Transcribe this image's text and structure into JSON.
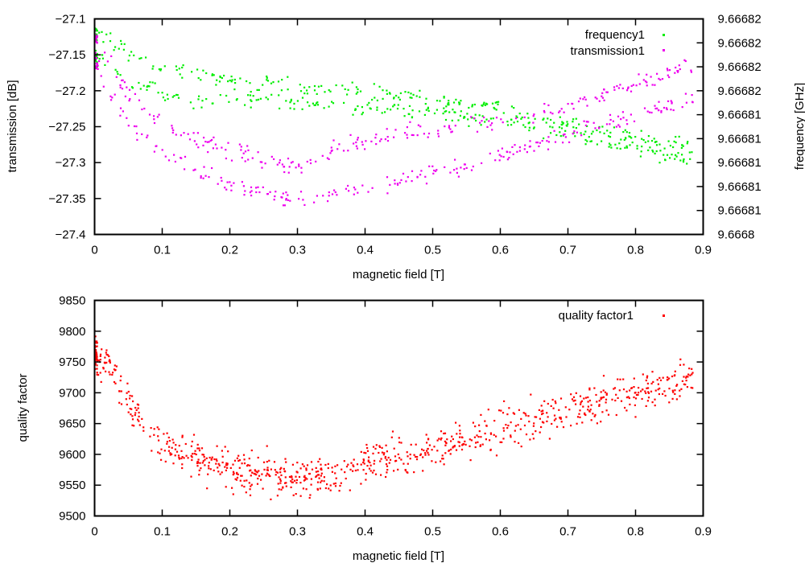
{
  "chart_data": [
    {
      "type": "scatter",
      "title": "",
      "xlabel": "magnetic field [T]",
      "ylabel": "transmission [dB]",
      "y2label": "frequency [GHz]",
      "xlim": [
        0,
        0.9
      ],
      "ylim": [
        -27.4,
        -27.1
      ],
      "y2lim": [
        9.6668,
        9.666823
      ],
      "xticks": [
        "0",
        "0.1",
        "0.2",
        "0.3",
        "0.4",
        "0.5",
        "0.6",
        "0.7",
        "0.8",
        "0.9"
      ],
      "yticks": [
        "-27.1",
        "-27.15",
        "-27.2",
        "-27.25",
        "-27.3",
        "-27.35",
        "-27.4"
      ],
      "y2ticks": [
        "9.66682",
        "9.66682",
        "9.66682",
        "9.66682",
        "9.66681",
        "9.66681",
        "9.66681",
        "9.66681",
        "9.66681",
        "9.6668"
      ],
      "grid": false,
      "legend": "top-right",
      "series": [
        {
          "name": "frequency1",
          "color": "#00ee00",
          "axis": "y2",
          "branches": [
            {
              "x": [
                0,
                0.02,
                0.05,
                0.08,
                0.1,
                0.13,
                0.15,
                0.2,
                0.25,
                0.3,
                0.35,
                0.4,
                0.45,
                0.5,
                0.55,
                0.6,
                0.65,
                0.7,
                0.75,
                0.8,
                0.85,
                0.885
              ],
              "y": [
                9.6668215,
                9.666821,
                9.6668195,
                9.6668185,
                9.6668178,
                9.6668172,
                9.666817,
                9.6668165,
                9.666816,
                9.6668158,
                9.6668155,
                9.6668152,
                9.6668148,
                9.6668145,
                9.666814,
                9.6668135,
                9.6668128,
                9.666812,
                9.6668112,
                9.6668105,
                9.6668097,
                9.6668092
              ]
            },
            {
              "x": [
                0,
                0.02,
                0.05,
                0.08,
                0.1,
                0.13,
                0.15,
                0.2,
                0.25,
                0.3,
                0.35,
                0.4,
                0.45,
                0.5,
                0.55,
                0.6,
                0.65,
                0.7,
                0.75,
                0.8,
                0.85,
                0.885
              ],
              "y": [
                9.666819,
                9.666818,
                9.6668165,
                9.6668155,
                9.666815,
                9.6668145,
                9.666814,
                9.6668145,
                9.6668143,
                9.666814,
                9.6668138,
                9.6668135,
                9.6668133,
                9.666813,
                9.6668125,
                9.666812,
                9.6668115,
                9.6668108,
                9.66681,
                9.6668093,
                9.6668085,
                9.666808
              ]
            }
          ]
        },
        {
          "name": "transmission1",
          "color": "#ee00ee",
          "axis": "y",
          "branches": [
            {
              "x": [
                0,
                0.02,
                0.05,
                0.08,
                0.1,
                0.13,
                0.15,
                0.2,
                0.25,
                0.3,
                0.35,
                0.4,
                0.45,
                0.5,
                0.55,
                0.6,
                0.65,
                0.7,
                0.75,
                0.8,
                0.85,
                0.885
              ],
              "y": [
                -27.125,
                -27.16,
                -27.205,
                -27.23,
                -27.245,
                -27.262,
                -27.27,
                -27.285,
                -27.295,
                -27.305,
                -27.285,
                -27.27,
                -27.26,
                -27.255,
                -27.25,
                -27.24,
                -27.23,
                -27.22,
                -27.205,
                -27.19,
                -27.175,
                -27.165
              ]
            },
            {
              "x": [
                0,
                0.02,
                0.05,
                0.08,
                0.1,
                0.13,
                0.15,
                0.2,
                0.25,
                0.3,
                0.35,
                0.4,
                0.45,
                0.5,
                0.55,
                0.6,
                0.65,
                0.7,
                0.75,
                0.8,
                0.85,
                0.885
              ],
              "y": [
                -27.155,
                -27.2,
                -27.245,
                -27.27,
                -27.285,
                -27.3,
                -27.31,
                -27.33,
                -27.34,
                -27.355,
                -27.345,
                -27.335,
                -27.325,
                -27.315,
                -27.305,
                -27.29,
                -27.275,
                -27.26,
                -27.245,
                -27.235,
                -27.22,
                -27.21
              ]
            }
          ]
        }
      ]
    },
    {
      "type": "scatter",
      "title": "",
      "xlabel": "magnetic field [T]",
      "ylabel": "quality factor",
      "xlim": [
        0,
        0.9
      ],
      "ylim": [
        9500,
        9850
      ],
      "xticks": [
        "0",
        "0.1",
        "0.2",
        "0.3",
        "0.4",
        "0.5",
        "0.6",
        "0.7",
        "0.8",
        "0.9"
      ],
      "yticks": [
        "9850",
        "9800",
        "9750",
        "9700",
        "9650",
        "9600",
        "9550",
        "9500"
      ],
      "grid": false,
      "legend": "top-right",
      "series": [
        {
          "name": "quality factor1",
          "color": "#ff0000",
          "axis": "y",
          "branches": [
            {
              "x": [
                0,
                0.02,
                0.04,
                0.06,
                0.08,
                0.1,
                0.13,
                0.15,
                0.2,
                0.25,
                0.3,
                0.35,
                0.4,
                0.45,
                0.5,
                0.55,
                0.6,
                0.65,
                0.7,
                0.75,
                0.8,
                0.85,
                0.885
              ],
              "y": [
                9765,
                9745,
                9700,
                9665,
                9640,
                9620,
                9600,
                9590,
                9578,
                9568,
                9562,
                9570,
                9582,
                9595,
                9610,
                9625,
                9640,
                9655,
                9672,
                9688,
                9700,
                9712,
                9725
              ]
            }
          ]
        }
      ]
    }
  ]
}
